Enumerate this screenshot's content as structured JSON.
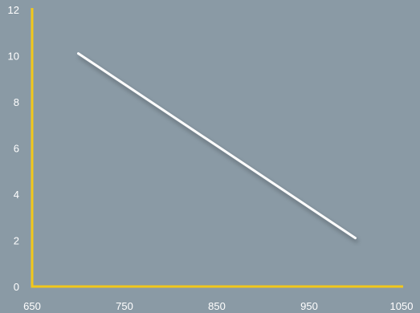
{
  "chart_data": {
    "type": "line",
    "x_ticks": [
      650,
      750,
      850,
      950,
      1050
    ],
    "y_ticks": [
      0,
      2,
      4,
      6,
      8,
      10,
      12
    ],
    "xlim": [
      650,
      1050
    ],
    "ylim": [
      0,
      12
    ],
    "grid": false,
    "legend": "none",
    "series": [
      {
        "x": [
          700,
          1000
        ],
        "y": [
          10.1,
          2.1
        ]
      }
    ],
    "colors": {
      "background": "#8a9aa5",
      "axis": "#f2c81a",
      "line": "#ffffff",
      "text": "#ffffff"
    }
  }
}
